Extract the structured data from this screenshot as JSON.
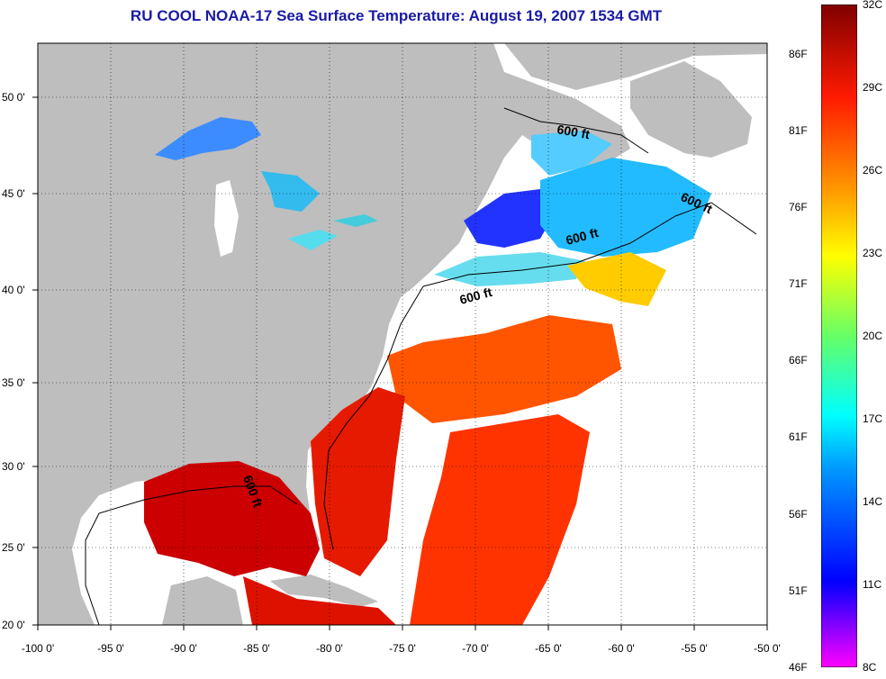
{
  "title": "RU COOL  NOAA-17  Sea Surface Temperature:  August 19, 2007 1534 GMT",
  "axes": {
    "lon_ticks": [
      "-100 0'",
      "-95 0'",
      "-90 0'",
      "-85 0'",
      "-80 0'",
      "-75 0'",
      "-70 0'",
      "-65 0'",
      "-60 0'",
      "-55 0'",
      "-50 0'"
    ],
    "lat_ticks": [
      "50 0'",
      "45 0'",
      "40 0'",
      "35 0'",
      "30 0'",
      "25 0'",
      "20 0'"
    ],
    "lon_range": [
      -100,
      -50
    ],
    "lat_range": [
      20,
      52.5
    ],
    "grid": "dotted"
  },
  "contour_labels": [
    "600 ft",
    "600 ft",
    "600 ft",
    "600 ft",
    "600 ft"
  ],
  "colorbar": {
    "celsius": [
      "32C",
      "29C",
      "26C",
      "23C",
      "20C",
      "17C",
      "14C",
      "11C",
      "8C"
    ],
    "fahrenheit": [
      "86F",
      "81F",
      "76F",
      "71F",
      "66F",
      "61F",
      "56F",
      "51F",
      "46F"
    ],
    "range_c": [
      8,
      32
    ]
  },
  "colors": {
    "land": "#bebebe",
    "no_data": "#ffffff",
    "title": "#1a1aa6"
  }
}
